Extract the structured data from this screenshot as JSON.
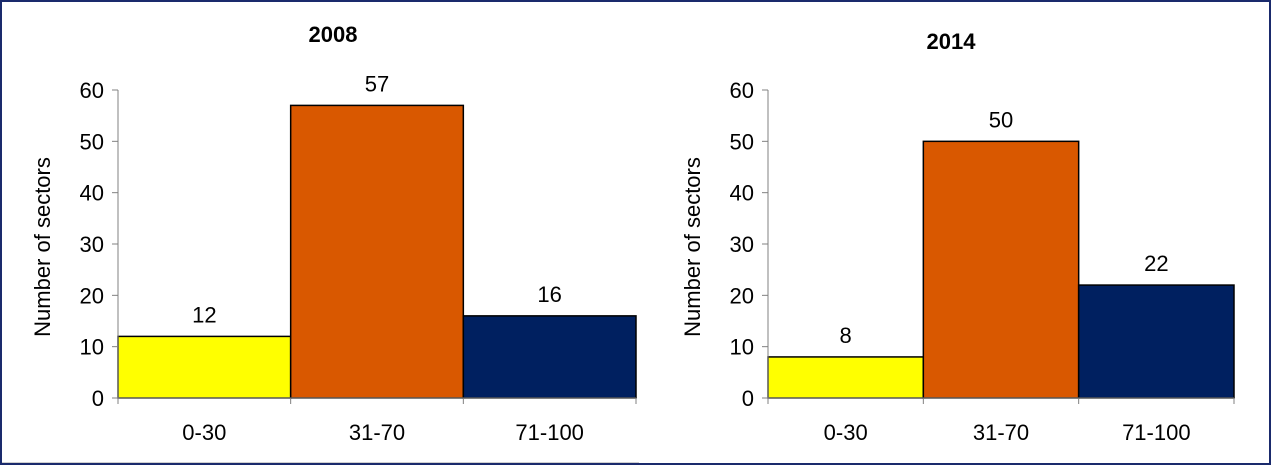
{
  "chart_data": [
    {
      "type": "bar",
      "title": "2008",
      "ylabel": "Number of sectors",
      "xlabel": "",
      "categories": [
        "0-30",
        "31-70",
        "71-100"
      ],
      "values": [
        12,
        57,
        16
      ],
      "colors": [
        "#ffff00",
        "#d95800",
        "#002060"
      ],
      "ylim": [
        0,
        60
      ],
      "yticks": [
        0,
        10,
        20,
        30,
        40,
        50,
        60
      ],
      "grid": false,
      "data_labels": [
        "12",
        "57",
        "16"
      ]
    },
    {
      "type": "bar",
      "title": "2014",
      "ylabel": "Number of sectors",
      "xlabel": "",
      "categories": [
        "0-30",
        "31-70",
        "71-100"
      ],
      "values": [
        8,
        50,
        22
      ],
      "colors": [
        "#ffff00",
        "#d95800",
        "#002060"
      ],
      "ylim": [
        0,
        60
      ],
      "yticks": [
        0,
        10,
        20,
        30,
        40,
        50,
        60
      ],
      "grid": false,
      "data_labels": [
        "8",
        "50",
        "22"
      ]
    }
  ]
}
